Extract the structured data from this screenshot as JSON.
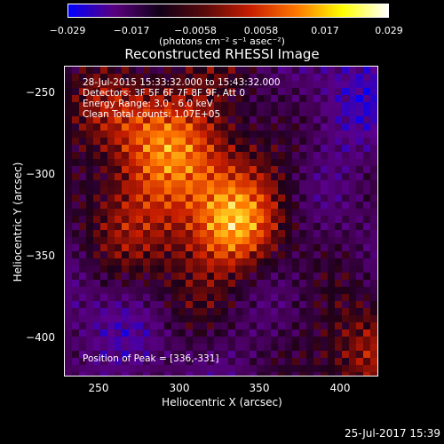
{
  "colorbar": {
    "colors": [
      "#0000ff",
      "#5a0080",
      "#100018",
      "#5a0a0a",
      "#c81e00",
      "#ff7800",
      "#ffff00",
      "#ffffff"
    ],
    "ticks": [
      "−0.029",
      "−0.017",
      "−0.0058",
      "0.0058",
      "0.017",
      "0.029"
    ],
    "units": "(photons cm⁻² s⁻¹ asec⁻²)"
  },
  "title": "Reconstructed RHESSI Image",
  "info": {
    "time_range": "28-Jul-2015 15:33:32.000 to 15:43:32.000",
    "detectors": "Detectors: 3F 5F 6F 7F 8F 9F, Att 0",
    "energy": "Energy Range: 3.0 - 6.0 keV",
    "clean": "Clean    Total counts: 1.07E+05",
    "peak": "Position of Peak = [336,-331]"
  },
  "axes": {
    "xlabel": "Heliocentric X (arcsec)",
    "ylabel": "Heliocentric Y (arcsec)",
    "xticks": [
      "250",
      "300",
      "350",
      "400"
    ],
    "yticks": [
      "−250",
      "−300",
      "−350",
      "−400"
    ],
    "xrange": [
      230,
      425
    ],
    "yrange": [
      -420,
      -228
    ]
  },
  "footer": {
    "timestamp": "25-Jul-2017 15:39"
  }
}
